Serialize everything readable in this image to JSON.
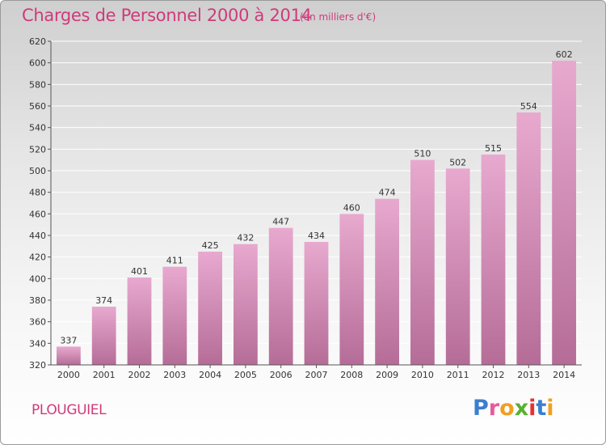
{
  "header": {
    "title": "Charges de Personnel 2000 à 2014",
    "subtitle": "(en milliers d'€)"
  },
  "footer": {
    "commune": "PLOUGUIEL",
    "logo_letters": [
      "P",
      "r",
      "o",
      "x",
      "i",
      "t",
      "i"
    ]
  },
  "colors": {
    "bar_top": "#e8a9cf",
    "bar_bottom": "#b56d97",
    "text_accent": "#d03a7a",
    "logo": [
      "#3a7fd0",
      "#e85a9a",
      "#f0a020",
      "#58b030",
      "#e83030",
      "#3a7fd0",
      "#f0a020"
    ]
  },
  "chart_data": {
    "type": "bar",
    "categories": [
      "2000",
      "2001",
      "2002",
      "2003",
      "2004",
      "2005",
      "2006",
      "2007",
      "2008",
      "2009",
      "2010",
      "2011",
      "2012",
      "2013",
      "2014"
    ],
    "values": [
      337,
      374,
      401,
      411,
      425,
      432,
      447,
      434,
      460,
      474,
      510,
      502,
      515,
      554,
      602
    ],
    "ylim": [
      320,
      620
    ],
    "yticks": [
      320,
      340,
      360,
      380,
      400,
      420,
      440,
      460,
      480,
      500,
      520,
      540,
      560,
      580,
      600,
      620
    ],
    "grid": true
  }
}
